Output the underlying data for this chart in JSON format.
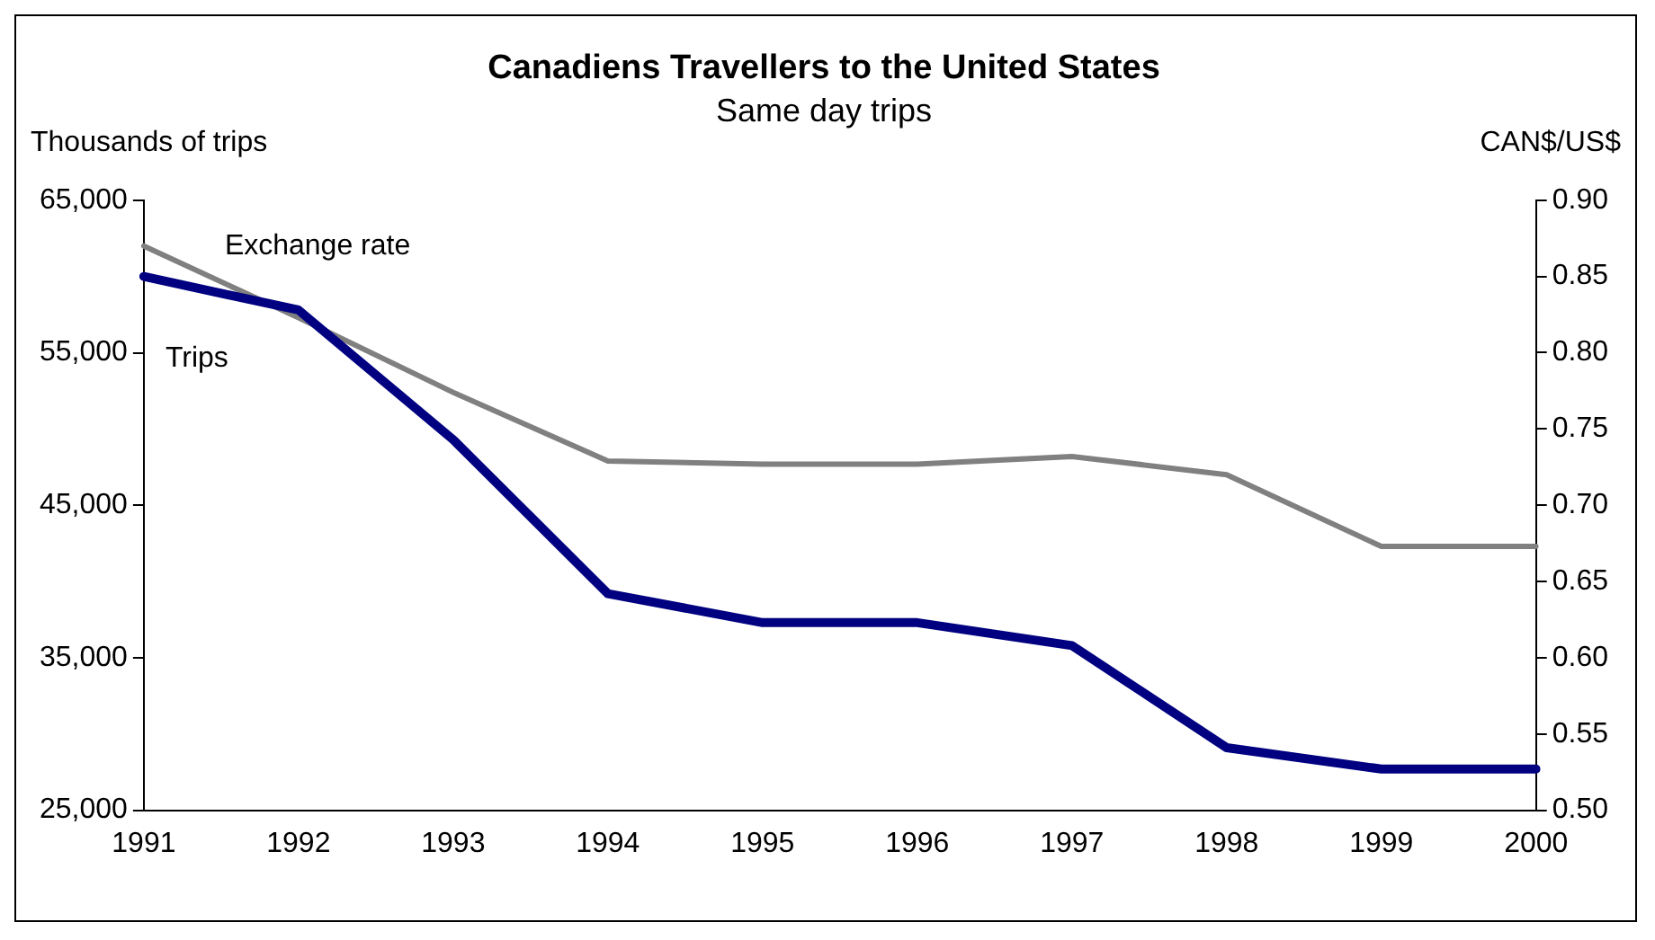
{
  "chart_data": {
    "type": "line",
    "title": "Canadiens Travellers to the United States",
    "subtitle": "Same day trips",
    "ylabel": "Thousands of trips",
    "y2label": "CAN$/US$",
    "categories": [
      "1991",
      "1992",
      "1993",
      "1994",
      "1995",
      "1996",
      "1997",
      "1998",
      "1999",
      "2000"
    ],
    "series": [
      {
        "name": "Exchange rate",
        "color": "#808080",
        "axis": "y2",
        "values": [
          0.87,
          0.823,
          0.774,
          0.729,
          0.727,
          0.727,
          0.732,
          0.72,
          0.673,
          0.673
        ]
      },
      {
        "name": "Trips",
        "color": "#000080",
        "values": [
          60000,
          57800,
          49300,
          39200,
          37300,
          37300,
          35800,
          29100,
          27700,
          27700
        ]
      }
    ],
    "ylim": [
      25000,
      65000
    ],
    "yticks": [
      {
        "value": 25000,
        "label": "25,000"
      },
      {
        "value": 35000,
        "label": "35,000"
      },
      {
        "value": 45000,
        "label": "45,000"
      },
      {
        "value": 55000,
        "label": "55,000"
      },
      {
        "value": 65000,
        "label": "65,000"
      }
    ],
    "y2lim": [
      0.5,
      0.9
    ],
    "y2ticks": [
      {
        "value": 0.5,
        "label": "0.50"
      },
      {
        "value": 0.55,
        "label": "0.55"
      },
      {
        "value": 0.6,
        "label": "0.60"
      },
      {
        "value": 0.65,
        "label": "0.65"
      },
      {
        "value": 0.7,
        "label": "0.70"
      },
      {
        "value": 0.75,
        "label": "0.75"
      },
      {
        "value": 0.8,
        "label": "0.80"
      },
      {
        "value": 0.85,
        "label": "0.85"
      },
      {
        "value": 0.9,
        "label": "0.90"
      }
    ],
    "grid": false,
    "legend": false,
    "marker": "none",
    "line_style": "solid"
  }
}
